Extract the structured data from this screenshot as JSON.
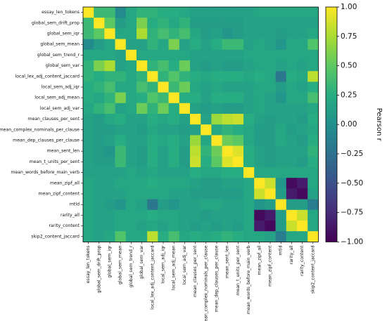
{
  "chart_data": {
    "type": "heatmap",
    "title": "",
    "labels": [
      "essay_len_tokens",
      "global_sem_drift_prop",
      "global_sem_iqr",
      "global_sem_mean",
      "global_sem_trend_r",
      "global_sem_var",
      "local_lex_adj_content_jaccard",
      "local_sem_adj_iqr",
      "local_sem_adj_mean",
      "local_sem_adj_var",
      "mean_clauses_per_sent",
      "mean_complex_nominals_per_clause",
      "mean_dep_clauses_per_clause",
      "mean_sent_len",
      "mean_t_units_per_sent",
      "mean_words_before_main_verb",
      "mean_zipf_all",
      "mean_zipf_content",
      "mtld",
      "rarity_all",
      "rarity_content",
      "skip2_content_jaccard"
    ],
    "matrix": [
      [
        1.0,
        0.35,
        0.35,
        -0.05,
        0.2,
        0.3,
        0.3,
        0.25,
        0.25,
        0.2,
        0.15,
        0.15,
        0.15,
        0.15,
        0.15,
        0.15,
        0.2,
        0.2,
        0.2,
        0.2,
        0.2,
        0.2
      ],
      [
        0.35,
        1.0,
        0.5,
        0.1,
        0.2,
        0.6,
        0.25,
        0.3,
        0.2,
        0.3,
        0.1,
        0.1,
        0.1,
        0.1,
        0.1,
        0.15,
        0.15,
        0.15,
        0.15,
        0.15,
        0.15,
        0.15
      ],
      [
        0.35,
        0.5,
        1.0,
        0.2,
        0.2,
        0.75,
        0.3,
        0.4,
        0.3,
        0.4,
        0.2,
        0.1,
        0.15,
        0.05,
        0.1,
        0.15,
        0.15,
        0.15,
        0.1,
        0.15,
        0.15,
        0.2
      ],
      [
        -0.05,
        0.1,
        0.2,
        1.0,
        0.15,
        0.15,
        0.3,
        0.2,
        0.6,
        0.15,
        0.25,
        0.15,
        0.25,
        0.35,
        0.35,
        0.15,
        0.2,
        0.15,
        0.05,
        0.2,
        0.2,
        0.45
      ],
      [
        0.2,
        0.2,
        0.2,
        0.15,
        1.0,
        0.2,
        0.2,
        0.2,
        0.2,
        0.2,
        0.15,
        0.15,
        0.15,
        0.15,
        0.15,
        0.2,
        0.2,
        0.2,
        0.2,
        0.2,
        0.2,
        0.2
      ],
      [
        0.3,
        0.6,
        0.75,
        0.15,
        0.2,
        1.0,
        0.3,
        0.4,
        0.25,
        0.55,
        0.15,
        0.1,
        0.15,
        0.1,
        0.1,
        0.15,
        0.2,
        0.2,
        0.15,
        0.2,
        0.15,
        0.2
      ],
      [
        0.3,
        0.25,
        0.3,
        0.3,
        0.2,
        0.3,
        1.0,
        0.3,
        0.45,
        0.3,
        0.25,
        0.2,
        0.25,
        0.25,
        0.25,
        0.2,
        0.25,
        0.2,
        -0.2,
        0.25,
        0.2,
        0.8
      ],
      [
        0.25,
        0.3,
        0.4,
        0.2,
        0.2,
        0.4,
        0.3,
        1.0,
        0.35,
        0.55,
        0.2,
        0.15,
        0.2,
        0.15,
        0.15,
        0.15,
        0.2,
        0.2,
        0.1,
        0.2,
        0.15,
        0.25
      ],
      [
        0.25,
        0.2,
        0.3,
        0.6,
        0.2,
        0.25,
        0.45,
        0.35,
        1.0,
        0.25,
        0.25,
        0.15,
        0.25,
        0.25,
        0.25,
        0.15,
        0.2,
        0.15,
        0.05,
        0.2,
        0.2,
        0.4
      ],
      [
        0.2,
        0.3,
        0.4,
        0.15,
        0.2,
        0.55,
        0.3,
        0.55,
        0.25,
        1.0,
        0.15,
        0.1,
        0.15,
        0.1,
        0.1,
        0.15,
        0.2,
        0.15,
        0.15,
        0.15,
        0.15,
        0.2
      ],
      [
        0.15,
        0.1,
        0.2,
        0.25,
        0.15,
        0.15,
        0.25,
        0.2,
        0.25,
        0.15,
        1.0,
        0.15,
        0.7,
        0.8,
        0.85,
        0.25,
        0.15,
        0.1,
        0.15,
        0.15,
        0.1,
        0.25
      ],
      [
        0.15,
        0.1,
        0.1,
        0.15,
        0.15,
        0.1,
        0.2,
        0.15,
        0.15,
        0.1,
        0.15,
        1.0,
        0.2,
        0.3,
        0.25,
        0.2,
        0.1,
        0.1,
        0.2,
        0.1,
        0.15,
        0.2
      ],
      [
        0.15,
        0.1,
        0.15,
        0.25,
        0.15,
        0.15,
        0.25,
        0.2,
        0.25,
        0.15,
        0.7,
        0.2,
        1.0,
        0.55,
        0.5,
        0.2,
        0.1,
        0.1,
        0.2,
        0.15,
        0.1,
        0.25
      ],
      [
        0.15,
        0.1,
        0.05,
        0.35,
        0.15,
        0.1,
        0.25,
        0.15,
        0.25,
        0.1,
        0.8,
        0.3,
        0.55,
        1.0,
        0.9,
        0.25,
        0.15,
        0.1,
        0.15,
        0.15,
        0.15,
        0.3
      ],
      [
        0.15,
        0.1,
        0.1,
        0.35,
        0.15,
        0.1,
        0.25,
        0.15,
        0.25,
        0.1,
        0.85,
        0.25,
        0.5,
        0.9,
        1.0,
        0.25,
        0.15,
        0.1,
        0.15,
        0.15,
        0.1,
        0.25
      ],
      [
        0.15,
        0.15,
        0.15,
        0.15,
        0.2,
        0.15,
        0.2,
        0.15,
        0.15,
        0.15,
        0.25,
        0.2,
        0.2,
        0.25,
        0.25,
        1.0,
        0.2,
        0.2,
        0.2,
        0.2,
        0.2,
        0.2
      ],
      [
        0.2,
        0.15,
        0.15,
        0.2,
        0.2,
        0.2,
        0.25,
        0.2,
        0.2,
        0.2,
        0.15,
        0.1,
        0.1,
        0.15,
        0.15,
        0.2,
        1.0,
        0.85,
        0.05,
        -0.95,
        -0.85,
        0.2
      ],
      [
        0.2,
        0.15,
        0.15,
        0.15,
        0.2,
        0.2,
        0.2,
        0.2,
        0.15,
        0.15,
        0.1,
        0.1,
        0.1,
        0.1,
        0.1,
        0.2,
        0.85,
        1.0,
        0.1,
        -0.85,
        -0.95,
        0.15
      ],
      [
        0.2,
        0.15,
        0.1,
        0.05,
        0.2,
        0.15,
        -0.2,
        0.1,
        0.05,
        0.15,
        0.15,
        0.2,
        0.2,
        0.15,
        0.15,
        0.2,
        0.05,
        0.1,
        1.0,
        0.1,
        0.1,
        -0.15
      ],
      [
        0.2,
        0.15,
        0.15,
        0.2,
        0.2,
        0.2,
        0.25,
        0.2,
        0.2,
        0.15,
        0.15,
        0.1,
        0.15,
        0.15,
        0.15,
        0.2,
        -0.95,
        -0.85,
        0.1,
        1.0,
        0.85,
        0.2
      ],
      [
        0.2,
        0.15,
        0.15,
        0.2,
        0.2,
        0.15,
        0.2,
        0.15,
        0.2,
        0.15,
        0.1,
        0.15,
        0.1,
        0.15,
        0.1,
        0.2,
        -0.85,
        -0.95,
        0.1,
        0.85,
        1.0,
        0.2
      ],
      [
        0.2,
        0.15,
        0.2,
        0.45,
        0.2,
        0.2,
        0.8,
        0.25,
        0.4,
        0.2,
        0.25,
        0.2,
        0.25,
        0.3,
        0.25,
        0.2,
        0.2,
        0.15,
        -0.15,
        0.2,
        0.2,
        1.0
      ]
    ],
    "colormap": "viridis",
    "vmin": -1.0,
    "vmax": 1.0,
    "colorbar_label": "Pearson r",
    "colorbar_ticks": [
      "1.00",
      "0.75",
      "0.50",
      "0.25",
      "0.00",
      "−0.25",
      "−0.50",
      "−0.75",
      "−1.00"
    ],
    "grid": false,
    "legend": "colorbar-right"
  }
}
